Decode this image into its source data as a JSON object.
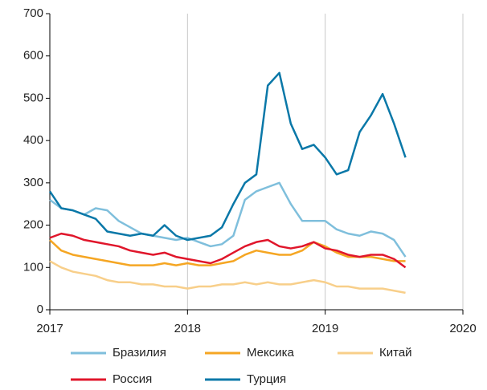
{
  "chart_data": {
    "type": "line",
    "x": [
      2017.0,
      2017.083,
      2017.167,
      2017.25,
      2017.333,
      2017.417,
      2017.5,
      2017.583,
      2017.667,
      2017.75,
      2017.833,
      2017.917,
      2018.0,
      2018.083,
      2018.167,
      2018.25,
      2018.333,
      2018.417,
      2018.5,
      2018.583,
      2018.667,
      2018.75,
      2018.833,
      2018.917,
      2019.0,
      2019.083,
      2019.167,
      2019.25,
      2019.333,
      2019.417,
      2019.5,
      2019.583
    ],
    "series": [
      {
        "name": "Бразилия",
        "color": "#7fbfdc",
        "values": [
          260,
          240,
          235,
          225,
          240,
          235,
          210,
          195,
          180,
          175,
          170,
          165,
          170,
          160,
          150,
          155,
          175,
          260,
          280,
          290,
          300,
          250,
          210,
          210,
          210,
          190,
          180,
          175,
          185,
          180,
          165,
          125
        ]
      },
      {
        "name": "Мексика",
        "color": "#f5a623",
        "values": [
          165,
          140,
          130,
          125,
          120,
          115,
          110,
          105,
          105,
          105,
          110,
          105,
          110,
          105,
          105,
          110,
          115,
          130,
          140,
          135,
          130,
          130,
          140,
          160,
          150,
          135,
          125,
          125,
          125,
          120,
          115,
          115
        ]
      },
      {
        "name": "Китай",
        "color": "#f8cf8a",
        "values": [
          115,
          100,
          90,
          85,
          80,
          70,
          65,
          65,
          60,
          60,
          55,
          55,
          50,
          55,
          55,
          60,
          60,
          65,
          60,
          65,
          60,
          60,
          65,
          70,
          65,
          55,
          55,
          50,
          50,
          50,
          45,
          40
        ]
      },
      {
        "name": "Россия",
        "color": "#e0162b",
        "values": [
          170,
          180,
          175,
          165,
          160,
          155,
          150,
          140,
          135,
          130,
          135,
          125,
          120,
          115,
          110,
          120,
          135,
          150,
          160,
          165,
          150,
          145,
          150,
          160,
          145,
          140,
          130,
          125,
          130,
          130,
          120,
          100
        ]
      },
      {
        "name": "Турция",
        "color": "#0a78a8",
        "values": [
          280,
          240,
          235,
          225,
          215,
          185,
          180,
          175,
          180,
          175,
          200,
          175,
          165,
          170,
          175,
          195,
          250,
          300,
          320,
          530,
          560,
          440,
          380,
          390,
          360,
          320,
          330,
          420,
          460,
          510,
          440,
          360
        ]
      }
    ],
    "xlim": [
      2017,
      2020
    ],
    "xticks": [
      2017,
      2018,
      2019,
      2020
    ],
    "ylim": [
      0,
      700
    ],
    "yticks": [
      0,
      100,
      200,
      300,
      400,
      500,
      600,
      700
    ],
    "grid": true
  }
}
